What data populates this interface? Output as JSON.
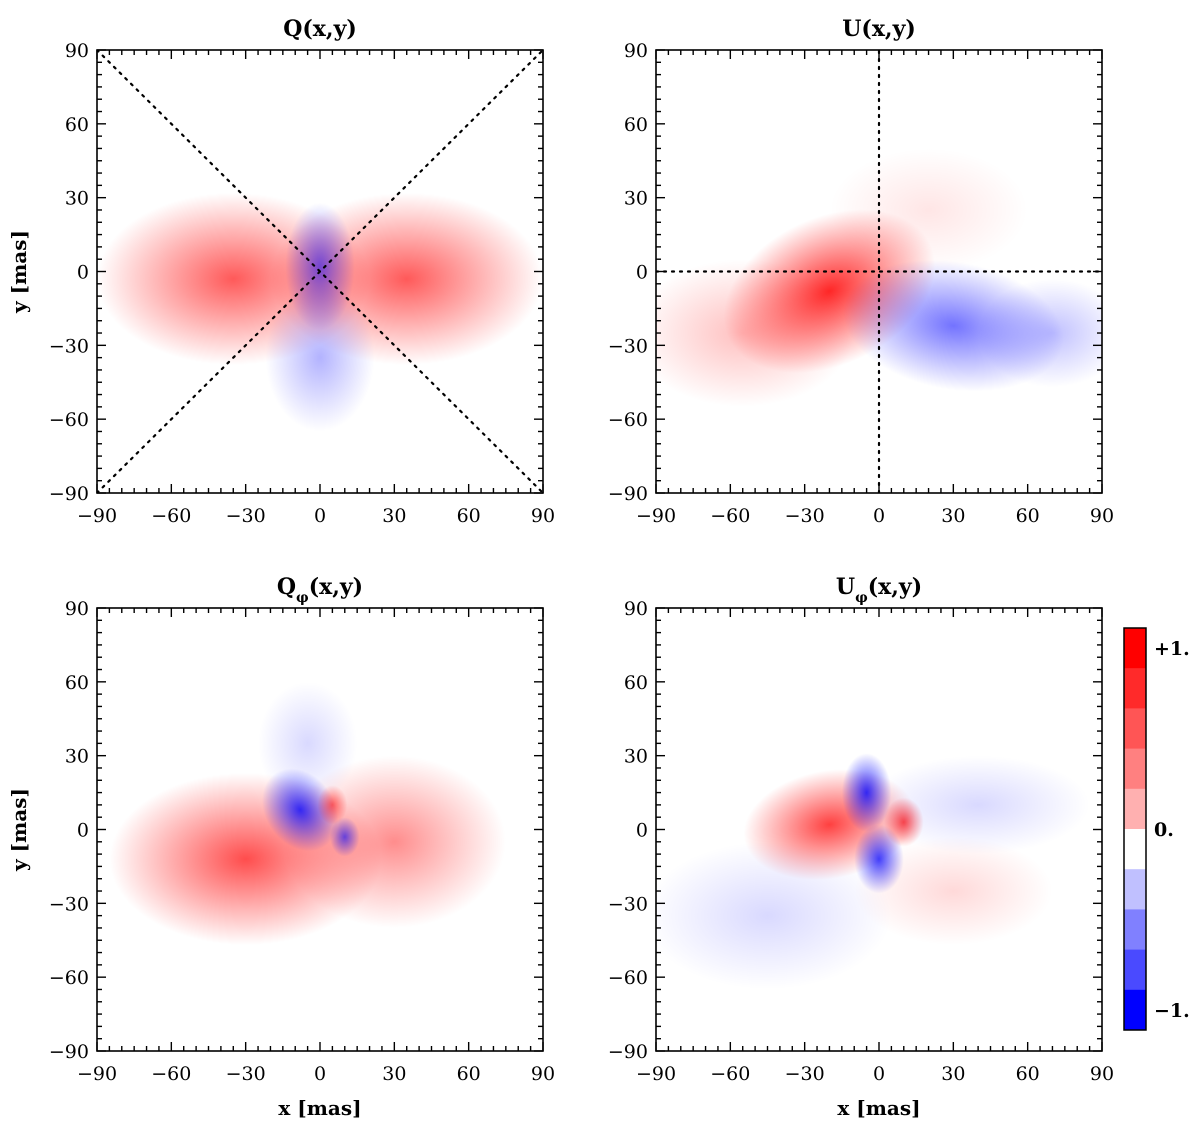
{
  "chart_data": [
    {
      "id": "Q",
      "type": "heatmap",
      "title": "Q(x,y)",
      "xlabel": "",
      "ylabel": "y [mas]",
      "xlim": [
        -90,
        90
      ],
      "ylim": [
        -90,
        90
      ],
      "xticks": [
        -90,
        -60,
        -30,
        0,
        30,
        60,
        90
      ],
      "yticks": [
        -90,
        -60,
        -30,
        0,
        30,
        60,
        90
      ],
      "overlay_lines": [
        {
          "from": [
            -90,
            90
          ],
          "to": [
            90,
            -90
          ],
          "style": "dotted"
        },
        {
          "from": [
            -90,
            -90
          ],
          "to": [
            90,
            90
          ],
          "style": "dotted"
        }
      ]
    },
    {
      "id": "U",
      "type": "heatmap",
      "title": "U(x,y)",
      "xlabel": "",
      "ylabel": "",
      "xlim": [
        -90,
        90
      ],
      "ylim": [
        -90,
        90
      ],
      "xticks": [
        -90,
        -60,
        -30,
        0,
        30,
        60,
        90
      ],
      "yticks": [
        -90,
        -60,
        -30,
        0,
        30,
        60,
        90
      ],
      "overlay_lines": [
        {
          "from": [
            0,
            -90
          ],
          "to": [
            0,
            90
          ],
          "style": "dotted"
        },
        {
          "from": [
            -90,
            0
          ],
          "to": [
            90,
            0
          ],
          "style": "dotted"
        }
      ]
    },
    {
      "id": "Qphi",
      "type": "heatmap",
      "title": "Q",
      "title_sub": "φ",
      "title_tail": "(x,y)",
      "xlabel": "x [mas]",
      "ylabel": "y [mas]",
      "xlim": [
        -90,
        90
      ],
      "ylim": [
        -90,
        90
      ],
      "xticks": [
        -90,
        -60,
        -30,
        0,
        30,
        60,
        90
      ],
      "yticks": [
        -90,
        -60,
        -30,
        0,
        30,
        60,
        90
      ],
      "overlay_lines": []
    },
    {
      "id": "Uphi",
      "type": "heatmap",
      "title": "U",
      "title_sub": "φ",
      "title_tail": "(x,y)",
      "xlabel": "x [mas]",
      "ylabel": "",
      "xlim": [
        -90,
        90
      ],
      "ylim": [
        -90,
        90
      ],
      "xticks": [
        -90,
        -60,
        -30,
        0,
        30,
        60,
        90
      ],
      "yticks": [
        -90,
        -60,
        -30,
        0,
        30,
        60,
        90
      ],
      "overlay_lines": []
    }
  ],
  "colorbar": {
    "range": [
      -1,
      1
    ],
    "labels": [
      {
        "value": 1,
        "text": "+1."
      },
      {
        "value": 0,
        "text": "0."
      },
      {
        "value": -1,
        "text": "−1."
      }
    ],
    "colors": [
      "#ff0000",
      "#ff2a2a",
      "#ff5555",
      "#ff8080",
      "#ffb0b0",
      "#ffffff",
      "#c0c0ff",
      "#8080ff",
      "#4a4aff",
      "#0000ff"
    ],
    "color_positive": "#ff0000",
    "color_negative": "#0000ff",
    "color_zero": "#ffffff"
  }
}
